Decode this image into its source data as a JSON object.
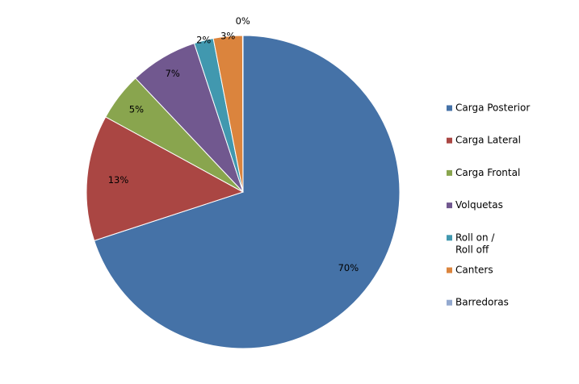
{
  "chart_data": {
    "type": "pie",
    "categories": [
      "Carga Posterior",
      "Carga Lateral",
      "Carga Frontal",
      "Volquetas",
      "Roll on / Roll off",
      "Canters",
      "Barredoras"
    ],
    "legend_lines": [
      [
        "Carga Posterior"
      ],
      [
        "Carga Lateral"
      ],
      [
        "Carga Frontal"
      ],
      [
        "Volquetas"
      ],
      [
        "Roll on /",
        "Roll off"
      ],
      [
        "Canters"
      ],
      [
        "Barredoras"
      ]
    ],
    "values": [
      70,
      13,
      5,
      7,
      2,
      3,
      0
    ],
    "labels": [
      "70%",
      "13%",
      "5%",
      "7%",
      "2%",
      "3%",
      "0%"
    ],
    "colors": [
      "#4572A7",
      "#AA4643",
      "#89A54E",
      "#71588F",
      "#4198AF",
      "#DB843D",
      "#93A9CF"
    ],
    "start_angle": "12 o'clock",
    "direction": "clockwise",
    "legend_position": "right",
    "title": ""
  }
}
